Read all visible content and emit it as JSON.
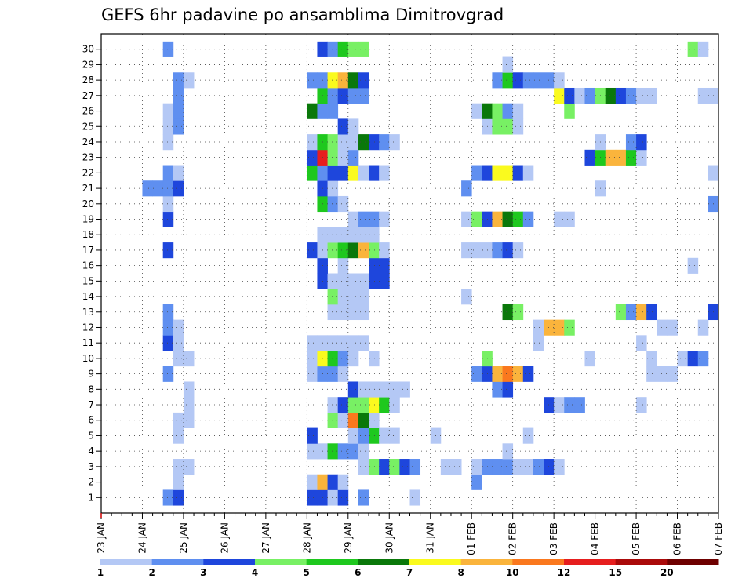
{
  "chart_data": {
    "type": "heatmap",
    "title": "GEFS 6hr padavine po ansamblima Dimitrovgrad",
    "xlabel": "",
    "ylabel": "",
    "y_ticks": [
      "1",
      "2",
      "3",
      "4",
      "5",
      "6",
      "7",
      "8",
      "9",
      "10",
      "11",
      "12",
      "13",
      "14",
      "15",
      "16",
      "17",
      "18",
      "19",
      "20",
      "21",
      "22",
      "23",
      "24",
      "25",
      "26",
      "27",
      "28",
      "29",
      "30"
    ],
    "x_ticks": [
      "23 JAN",
      "24 JAN",
      "25 JAN",
      "26 JAN",
      "27 JAN",
      "28 JAN",
      "29 JAN",
      "30 JAN",
      "31 JAN",
      "01 FEB",
      "02 FEB",
      "03 FEB",
      "04 FEB",
      "05 FEB",
      "06 FEB",
      "07 FEB"
    ],
    "x_step": "6hr",
    "grid": true,
    "legend": {
      "placement": "bottom",
      "labels": [
        "1",
        "2",
        "3",
        "4",
        "5",
        "6",
        "7",
        "8",
        "10",
        "12",
        "15",
        "20"
      ],
      "colors": [
        "#b4c8f5",
        "#5f8ff0",
        "#1e46dc",
        "#78f064",
        "#1ec81e",
        "#0a780a",
        "#fafa1e",
        "#fab43c",
        "#fa781e",
        "#e61e1e",
        "#aa0a0a",
        "#6e0000"
      ]
    },
    "rows": {
      "1": [
        [
          6,
          2
        ],
        [
          7,
          3
        ],
        [
          20,
          3
        ],
        [
          21,
          3
        ],
        [
          22,
          1
        ],
        [
          23,
          3
        ],
        [
          25,
          2
        ],
        [
          30,
          1
        ]
      ],
      "2": [
        [
          7,
          1
        ],
        [
          20,
          1
        ],
        [
          21,
          8
        ],
        [
          22,
          3
        ],
        [
          23,
          1
        ],
        [
          36,
          2
        ]
      ],
      "3": [
        [
          7,
          1
        ],
        [
          8,
          1
        ],
        [
          25,
          1
        ],
        [
          26,
          4
        ],
        [
          27,
          3
        ],
        [
          28,
          4
        ],
        [
          29,
          3
        ],
        [
          30,
          2
        ],
        [
          33,
          1
        ],
        [
          34,
          1
        ],
        [
          36,
          1
        ],
        [
          37,
          2
        ],
        [
          38,
          2
        ],
        [
          39,
          2
        ],
        [
          40,
          1
        ],
        [
          41,
          1
        ],
        [
          42,
          2
        ],
        [
          43,
          3
        ],
        [
          44,
          1
        ]
      ],
      "4": [
        [
          20,
          1
        ],
        [
          21,
          1
        ],
        [
          22,
          5
        ],
        [
          23,
          2
        ],
        [
          24,
          2
        ],
        [
          25,
          1
        ],
        [
          39,
          1
        ]
      ],
      "5": [
        [
          7,
          1
        ],
        [
          20,
          3
        ],
        [
          24,
          1
        ],
        [
          25,
          2
        ],
        [
          26,
          5
        ],
        [
          27,
          1
        ],
        [
          28,
          1
        ],
        [
          32,
          1
        ],
        [
          41,
          1
        ]
      ],
      "6": [
        [
          7,
          1
        ],
        [
          8,
          1
        ],
        [
          22,
          4
        ],
        [
          23,
          1
        ],
        [
          24,
          9
        ],
        [
          25,
          6
        ],
        [
          26,
          1
        ]
      ],
      "7": [
        [
          8,
          1
        ],
        [
          22,
          1
        ],
        [
          23,
          3
        ],
        [
          24,
          4
        ],
        [
          25,
          4
        ],
        [
          26,
          7
        ],
        [
          27,
          5
        ],
        [
          28,
          1
        ],
        [
          43,
          3
        ],
        [
          44,
          1
        ],
        [
          45,
          2
        ],
        [
          46,
          2
        ],
        [
          52,
          1
        ]
      ],
      "8": [
        [
          8,
          1
        ],
        [
          24,
          3
        ],
        [
          25,
          1
        ],
        [
          26,
          1
        ],
        [
          27,
          1
        ],
        [
          28,
          1
        ],
        [
          29,
          1
        ],
        [
          38,
          2
        ],
        [
          39,
          3
        ]
      ],
      "9": [
        [
          6,
          2
        ],
        [
          20,
          1
        ],
        [
          21,
          2
        ],
        [
          22,
          2
        ],
        [
          23,
          1
        ],
        [
          36,
          2
        ],
        [
          37,
          3
        ],
        [
          38,
          8
        ],
        [
          39,
          9
        ],
        [
          40,
          8
        ],
        [
          41,
          3
        ],
        [
          53,
          1
        ],
        [
          54,
          1
        ],
        [
          55,
          1
        ]
      ],
      "10": [
        [
          7,
          1
        ],
        [
          8,
          1
        ],
        [
          20,
          1
        ],
        [
          21,
          7
        ],
        [
          22,
          5
        ],
        [
          23,
          2
        ],
        [
          24,
          1
        ],
        [
          26,
          1
        ],
        [
          37,
          4
        ],
        [
          47,
          1
        ],
        [
          53,
          1
        ],
        [
          56,
          1
        ],
        [
          57,
          3
        ],
        [
          58,
          2
        ]
      ],
      "11": [
        [
          6,
          3
        ],
        [
          7,
          1
        ],
        [
          20,
          1
        ],
        [
          21,
          1
        ],
        [
          22,
          1
        ],
        [
          23,
          1
        ],
        [
          24,
          1
        ],
        [
          25,
          1
        ],
        [
          42,
          1
        ],
        [
          52,
          1
        ]
      ],
      "12": [
        [
          6,
          2
        ],
        [
          7,
          1
        ],
        [
          42,
          1
        ],
        [
          43,
          8
        ],
        [
          44,
          8
        ],
        [
          45,
          4
        ],
        [
          54,
          1
        ],
        [
          55,
          1
        ],
        [
          58,
          1
        ]
      ],
      "13": [
        [
          6,
          2
        ],
        [
          22,
          1
        ],
        [
          23,
          1
        ],
        [
          24,
          1
        ],
        [
          25,
          1
        ],
        [
          39,
          6
        ],
        [
          40,
          4
        ],
        [
          50,
          4
        ],
        [
          51,
          2
        ],
        [
          52,
          8
        ],
        [
          53,
          3
        ],
        [
          59,
          3
        ]
      ],
      "14": [
        [
          22,
          4
        ],
        [
          23,
          1
        ],
        [
          24,
          1
        ],
        [
          25,
          1
        ],
        [
          35,
          1
        ]
      ],
      "15": [
        [
          21,
          3
        ],
        [
          22,
          1
        ],
        [
          23,
          1
        ],
        [
          24,
          1
        ],
        [
          25,
          1
        ],
        [
          26,
          3
        ],
        [
          27,
          3
        ]
      ],
      "16": [
        [
          21,
          3
        ],
        [
          23,
          1
        ],
        [
          26,
          3
        ],
        [
          27,
          3
        ],
        [
          57,
          1
        ]
      ],
      "17": [
        [
          6,
          3
        ],
        [
          20,
          3
        ],
        [
          21,
          1
        ],
        [
          22,
          4
        ],
        [
          23,
          5
        ],
        [
          24,
          6
        ],
        [
          25,
          8
        ],
        [
          26,
          4
        ],
        [
          27,
          1
        ],
        [
          35,
          1
        ],
        [
          36,
          1
        ],
        [
          37,
          1
        ],
        [
          38,
          2
        ],
        [
          39,
          3
        ],
        [
          40,
          1
        ]
      ],
      "18": [
        [
          21,
          1
        ],
        [
          22,
          1
        ],
        [
          23,
          1
        ],
        [
          24,
          1
        ],
        [
          25,
          1
        ],
        [
          26,
          1
        ]
      ],
      "19": [
        [
          6,
          3
        ],
        [
          24,
          1
        ],
        [
          25,
          2
        ],
        [
          26,
          2
        ],
        [
          27,
          1
        ],
        [
          35,
          1
        ],
        [
          36,
          4
        ],
        [
          37,
          3
        ],
        [
          38,
          8
        ],
        [
          39,
          6
        ],
        [
          40,
          5
        ],
        [
          41,
          2
        ],
        [
          44,
          1
        ],
        [
          45,
          1
        ]
      ],
      "20": [
        [
          6,
          1
        ],
        [
          21,
          5
        ],
        [
          22,
          2
        ],
        [
          23,
          1
        ],
        [
          59,
          2
        ]
      ],
      "21": [
        [
          4,
          2
        ],
        [
          5,
          2
        ],
        [
          6,
          2
        ],
        [
          7,
          3
        ],
        [
          21,
          3
        ],
        [
          22,
          1
        ],
        [
          35,
          2
        ],
        [
          48,
          1
        ]
      ],
      "22": [
        [
          6,
          2
        ],
        [
          7,
          1
        ],
        [
          20,
          5
        ],
        [
          21,
          2
        ],
        [
          22,
          3
        ],
        [
          23,
          3
        ],
        [
          24,
          7
        ],
        [
          25,
          1
        ],
        [
          26,
          3
        ],
        [
          27,
          1
        ],
        [
          36,
          2
        ],
        [
          37,
          3
        ],
        [
          38,
          7
        ],
        [
          39,
          7
        ],
        [
          40,
          3
        ],
        [
          41,
          1
        ],
        [
          59,
          1
        ]
      ],
      "23": [
        [
          20,
          3
        ],
        [
          21,
          10
        ],
        [
          22,
          4
        ],
        [
          23,
          1
        ],
        [
          24,
          2
        ],
        [
          47,
          3
        ],
        [
          48,
          5
        ],
        [
          49,
          8
        ],
        [
          50,
          8
        ],
        [
          51,
          5
        ],
        [
          52,
          1
        ]
      ],
      "24": [
        [
          6,
          1
        ],
        [
          20,
          1
        ],
        [
          21,
          5
        ],
        [
          22,
          4
        ],
        [
          23,
          1
        ],
        [
          24,
          1
        ],
        [
          25,
          6
        ],
        [
          26,
          3
        ],
        [
          27,
          2
        ],
        [
          28,
          1
        ],
        [
          48,
          1
        ],
        [
          51,
          2
        ],
        [
          52,
          3
        ]
      ],
      "25": [
        [
          6,
          1
        ],
        [
          7,
          2
        ],
        [
          23,
          3
        ],
        [
          24,
          1
        ],
        [
          37,
          1
        ],
        [
          38,
          4
        ],
        [
          39,
          4
        ],
        [
          40,
          1
        ]
      ],
      "26": [
        [
          6,
          1
        ],
        [
          7,
          2
        ],
        [
          20,
          6
        ],
        [
          21,
          2
        ],
        [
          22,
          2
        ],
        [
          36,
          1
        ],
        [
          37,
          6
        ],
        [
          38,
          4
        ],
        [
          39,
          2
        ],
        [
          40,
          1
        ],
        [
          45,
          4
        ]
      ],
      "27": [
        [
          7,
          2
        ],
        [
          21,
          5
        ],
        [
          22,
          2
        ],
        [
          23,
          3
        ],
        [
          24,
          2
        ],
        [
          25,
          2
        ],
        [
          44,
          7
        ],
        [
          45,
          3
        ],
        [
          46,
          1
        ],
        [
          47,
          2
        ],
        [
          48,
          4
        ],
        [
          49,
          6
        ],
        [
          50,
          3
        ],
        [
          51,
          2
        ],
        [
          52,
          1
        ],
        [
          53,
          1
        ],
        [
          58,
          1
        ],
        [
          59,
          1
        ]
      ],
      "28": [
        [
          7,
          2
        ],
        [
          8,
          1
        ],
        [
          20,
          2
        ],
        [
          21,
          2
        ],
        [
          22,
          7
        ],
        [
          23,
          8
        ],
        [
          24,
          6
        ],
        [
          25,
          3
        ],
        [
          38,
          2
        ],
        [
          39,
          5
        ],
        [
          40,
          3
        ],
        [
          41,
          2
        ],
        [
          42,
          2
        ],
        [
          43,
          2
        ],
        [
          44,
          1
        ]
      ],
      "29": [
        [
          39,
          1
        ]
      ],
      "30": [
        [
          6,
          2
        ],
        [
          21,
          3
        ],
        [
          22,
          2
        ],
        [
          23,
          5
        ],
        [
          24,
          4
        ],
        [
          25,
          4
        ],
        [
          57,
          4
        ],
        [
          58,
          1
        ]
      ]
    }
  }
}
